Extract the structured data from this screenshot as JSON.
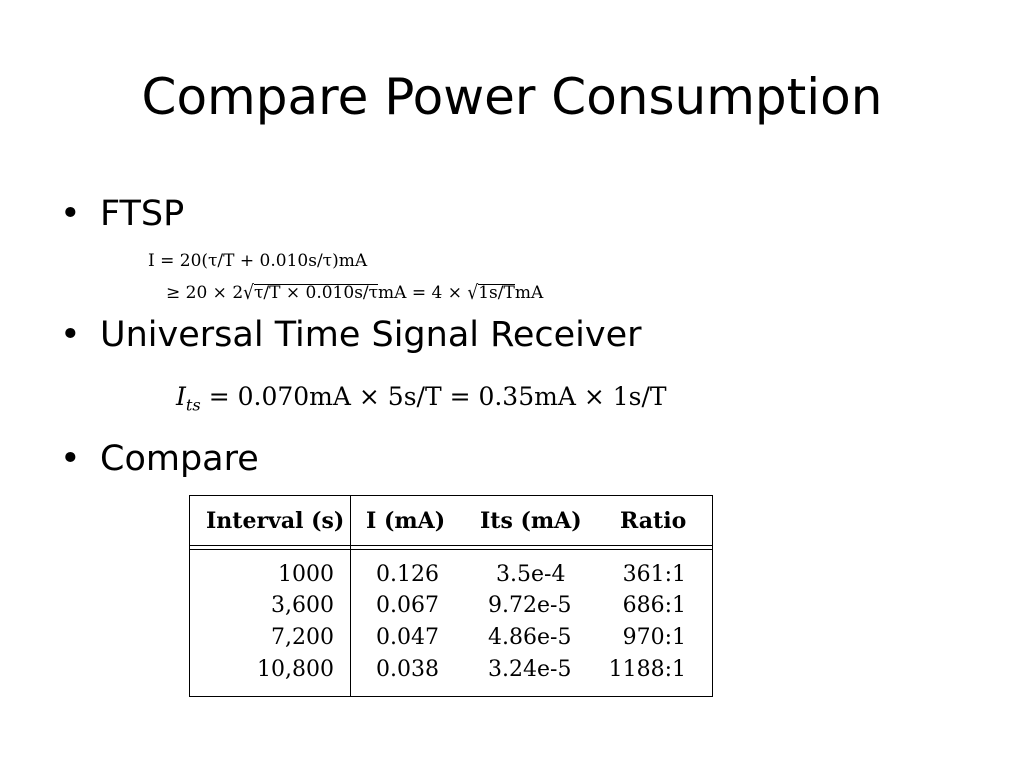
{
  "slide": {
    "title": "Compare Power Consumption",
    "bullets": [
      {
        "marker": "•",
        "text": "FTSP"
      },
      {
        "marker": "•",
        "text": "Universal Time Signal Receiver"
      },
      {
        "marker": "•",
        "text": "Compare"
      }
    ]
  },
  "equations": {
    "ftsp_line1": {
      "lhs": "I = 20(τ/T + 0.010s/τ)mA"
    },
    "ftsp_line2": {
      "prefix": "≥ 20 × 2",
      "sqrt1": "τ/T × 0.010s/τ",
      "mid": "mA = 4 × ",
      "sqrt2": "1s/T",
      "suffix": "mA"
    },
    "receiver": {
      "text_before": "= 0.070mA × 5s/T = 0.35mA × 1s/T",
      "symbol": "I",
      "subscript": "ts"
    }
  },
  "table": {
    "headers": [
      "Interval (s)",
      "I (mA)",
      "Its (mA)",
      "Ratio"
    ],
    "rows": [
      [
        "1000",
        "0.126",
        "3.5e-4",
        "361:1"
      ],
      [
        "3,600",
        "0.067",
        "9.72e-5",
        "686:1"
      ],
      [
        "7,200",
        "0.047",
        "4.86e-5",
        "970:1"
      ],
      [
        "10,800",
        "0.038",
        "3.24e-5",
        "1188:1"
      ]
    ]
  }
}
